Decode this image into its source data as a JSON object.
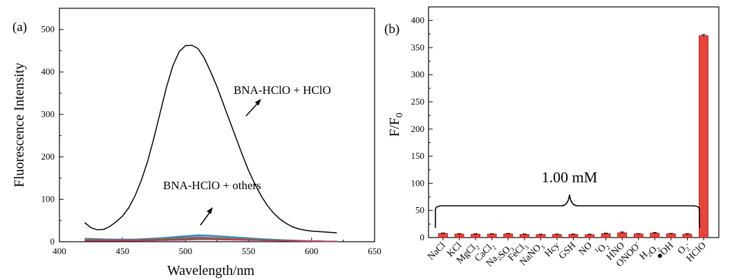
{
  "colors": {
    "bar_fill": "#e8443b",
    "bar_edge": "#a01010",
    "curve_main": "#000000",
    "others_curves": [
      "#1f8ad0",
      "#2aa198",
      "#8a4fb0",
      "#d0553a",
      "#3a7a3a",
      "#c03070"
    ]
  },
  "chart_data": [
    {
      "type": "line",
      "panel_label": "(a)",
      "xlabel": "Wavelength/nm",
      "ylabel": "Fluorescence Intensity",
      "xlim": [
        400,
        650
      ],
      "ylim": [
        0,
        550
      ],
      "xticks": [
        400,
        450,
        500,
        550,
        600,
        650
      ],
      "yticks": [
        0,
        100,
        200,
        300,
        400,
        500
      ],
      "annotations": [
        {
          "text": "BNA-HClO + HClO",
          "x": 578,
          "y": 305,
          "arrow": "up-right"
        },
        {
          "text": "BNA-HClO + others",
          "x": 542,
          "y": 120,
          "arrow": "up-right"
        }
      ],
      "series": [
        {
          "x": [
            420,
            425,
            430,
            435,
            440,
            445,
            450,
            455,
            460,
            465,
            470,
            475,
            480,
            485,
            490,
            495,
            500,
            505,
            510,
            515,
            520,
            525,
            530,
            535,
            540,
            545,
            550,
            555,
            560,
            565,
            570,
            575,
            580,
            585,
            590,
            595,
            600,
            605,
            610,
            615,
            620
          ],
          "values": [
            45,
            33,
            28,
            29,
            36,
            47,
            60,
            80,
            108,
            145,
            190,
            245,
            305,
            365,
            415,
            448,
            462,
            463,
            455,
            432,
            400,
            365,
            325,
            285,
            245,
            205,
            168,
            136,
            108,
            85,
            67,
            53,
            43,
            35,
            30,
            27,
            25,
            24,
            23,
            22,
            21
          ]
        },
        {
          "x": [
            420,
            440,
            460,
            480,
            500,
            510,
            520,
            540,
            560,
            580,
            600,
            620
          ],
          "values": [
            8,
            6,
            6,
            9,
            14,
            16,
            15,
            11,
            7,
            4,
            2,
            1
          ]
        },
        {
          "x": [
            420,
            440,
            460,
            480,
            500,
            510,
            520,
            540,
            560,
            580,
            600,
            620
          ],
          "values": [
            7,
            6,
            5,
            8,
            12,
            14,
            13,
            10,
            6,
            4,
            2,
            1
          ]
        },
        {
          "x": [
            420,
            440,
            460,
            480,
            500,
            510,
            520,
            540,
            560,
            580,
            600,
            620
          ],
          "values": [
            6,
            5,
            5,
            7,
            10,
            11,
            10,
            8,
            5,
            3,
            2,
            1
          ]
        },
        {
          "x": [
            420,
            440,
            460,
            480,
            500,
            510,
            520,
            540,
            560,
            580,
            600,
            620
          ],
          "values": [
            5,
            4,
            4,
            6,
            8,
            9,
            9,
            7,
            5,
            3,
            2,
            1
          ]
        },
        {
          "x": [
            420,
            440,
            460,
            480,
            500,
            510,
            520,
            540,
            560,
            580,
            600,
            620
          ],
          "values": [
            3,
            3,
            3,
            5,
            6,
            7,
            7,
            5,
            4,
            2,
            1,
            1
          ]
        },
        {
          "x": [
            420,
            440,
            460,
            480,
            500,
            510,
            520,
            540,
            560,
            580,
            600,
            620
          ],
          "values": [
            2,
            2,
            2,
            3,
            4,
            5,
            5,
            4,
            3,
            2,
            1,
            0
          ]
        }
      ]
    },
    {
      "type": "bar",
      "panel_label": "(b)",
      "ylabel": "F/F",
      "ylabel_sub": "0",
      "ylim": [
        0,
        425
      ],
      "yticks": [
        0,
        50,
        100,
        150,
        200,
        250,
        300,
        350,
        400
      ],
      "bracket_label": "1.00 mM",
      "categories": [
        {
          "text": "NaCl",
          "sub": "",
          "sup": ""
        },
        {
          "text": "KCl",
          "sub": "",
          "sup": ""
        },
        {
          "text": "MgCl",
          "sub": "2",
          "sup": ""
        },
        {
          "text": "CaCl",
          "sub": "2",
          "sup": ""
        },
        {
          "text": "Na",
          "sub": "2",
          "tail": "SO",
          "sub2": "3",
          "sup": ""
        },
        {
          "text": "FeCl",
          "sub": "3",
          "sup": ""
        },
        {
          "text": "NaNO",
          "sub": "3",
          "sup": ""
        },
        {
          "text": "Hcy",
          "sub": "",
          "sup": ""
        },
        {
          "text": "GSH",
          "sub": "",
          "sup": ""
        },
        {
          "text": "NO",
          "sub": "",
          "sup": ""
        },
        {
          "pre_sup": "1",
          "text": "O",
          "sub": "2",
          "sup": ""
        },
        {
          "text": "HNO",
          "sub": "",
          "sup": ""
        },
        {
          "text": "ONOO",
          "sub": "",
          "sup": "-"
        },
        {
          "text": "H",
          "sub": "2",
          "tail": "O",
          "sub2": "2",
          "sup": ""
        },
        {
          "text": "●OH",
          "sub": "",
          "sup": ""
        },
        {
          "text": "O",
          "sub": "2",
          "sup": "-"
        },
        {
          "text": "HClO",
          "sub": "",
          "sup": ""
        }
      ],
      "values": [
        7.5,
        6.5,
        6.2,
        6.3,
        6.8,
        5.8,
        5.5,
        5.6,
        5.7,
        5.4,
        7.2,
        8.8,
        6.6,
        8.2,
        6.9,
        6.4,
        372
      ],
      "errors": [
        1.0,
        0.8,
        0.8,
        0.8,
        0.8,
        0.8,
        0.8,
        0.8,
        0.8,
        0.8,
        1.0,
        1.5,
        0.8,
        1.2,
        0.8,
        0.8,
        2.0
      ]
    }
  ]
}
